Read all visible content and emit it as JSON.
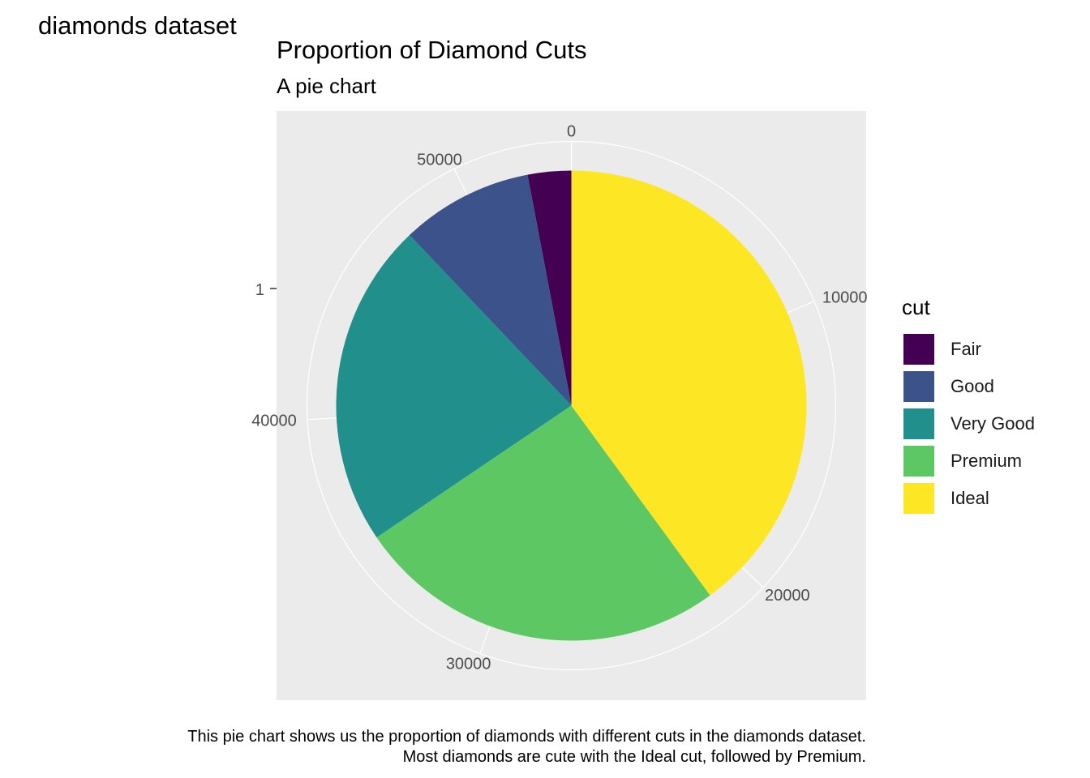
{
  "page_title": "diamonds dataset",
  "chart_data": {
    "type": "pie",
    "title": "Proportion of Diamond Cuts",
    "subtitle": "A pie chart",
    "caption_lines": [
      "This pie chart shows us the proportion of diamonds with different cuts in the diamonds dataset.",
      "Most diamonds are cute with the Ideal cut, followed by Premium."
    ],
    "legend_title": "cut",
    "legend_position": "right",
    "categories": [
      "Fair",
      "Good",
      "Very Good",
      "Premium",
      "Ideal"
    ],
    "values": [
      1610,
      4906,
      12082,
      13791,
      21551
    ],
    "colors": [
      "#440154",
      "#3B528B",
      "#21908C",
      "#5DC863",
      "#FDE725"
    ],
    "y_axis_label": "1",
    "theta_ticks": [
      0,
      10000,
      20000,
      30000,
      40000,
      50000
    ],
    "theta_tick_labels": [
      "0",
      "10000",
      "20000",
      "30000",
      "40000",
      "50000"
    ],
    "panel_background": "#EBEBEB",
    "grid": true,
    "grid_color": "#FFFFFF"
  }
}
